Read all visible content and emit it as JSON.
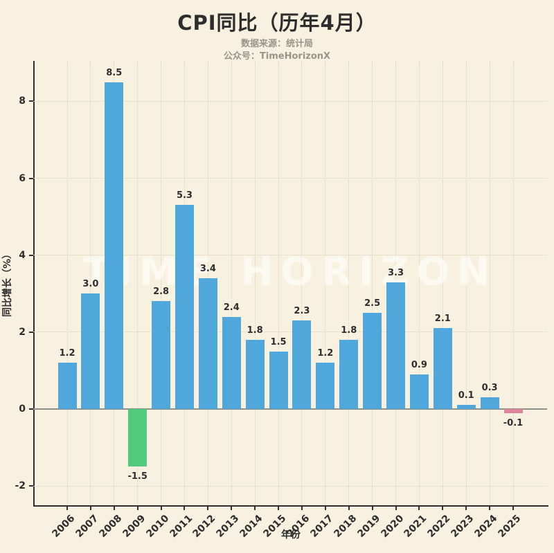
{
  "header": {
    "title": "CPI同比（历年4月）",
    "source_line": "数据来源：统计局",
    "account_line": "公众号：TimeHorizonX"
  },
  "chart_data": {
    "type": "bar",
    "title": "CPI同比（历年4月）",
    "categories": [
      "2006",
      "2007",
      "2008",
      "2009",
      "2010",
      "2011",
      "2012",
      "2013",
      "2014",
      "2015",
      "2016",
      "2017",
      "2018",
      "2019",
      "2020",
      "2021",
      "2022",
      "2023",
      "2024",
      "2025"
    ],
    "values": [
      1.2,
      3.0,
      8.5,
      -1.5,
      2.8,
      5.3,
      3.4,
      2.4,
      1.8,
      1.5,
      2.3,
      1.2,
      1.8,
      2.5,
      3.3,
      0.9,
      2.1,
      0.1,
      0.3,
      -0.1
    ],
    "value_labels": [
      "1.2",
      "3.0",
      "8.5",
      "-1.5",
      "2.8",
      "5.3",
      "3.4",
      "2.4",
      "1.8",
      "1.5",
      "2.3",
      "1.2",
      "1.8",
      "2.5",
      "3.3",
      "0.9",
      "2.1",
      "0.1",
      "0.3",
      "-0.1"
    ],
    "bar_colors": [
      "#4fa7db",
      "#4fa7db",
      "#4fa7db",
      "#52cb7e",
      "#4fa7db",
      "#4fa7db",
      "#4fa7db",
      "#4fa7db",
      "#4fa7db",
      "#4fa7db",
      "#4fa7db",
      "#4fa7db",
      "#4fa7db",
      "#4fa7db",
      "#4fa7db",
      "#4fa7db",
      "#4fa7db",
      "#4fa7db",
      "#4fa7db",
      "#e2849c"
    ],
    "xlabel": "年份",
    "ylabel": "同比增长（%）",
    "yticks": [
      -2,
      0,
      2,
      4,
      6,
      8
    ],
    "ylim": [
      -2.5,
      9.05
    ],
    "grid": true,
    "legend_position": "none",
    "watermark": "TIME HORIZON",
    "colors": {
      "background": "#f9f1df",
      "bar_default": "#4fa7db",
      "bar_negative_2009": "#52cb7e",
      "bar_negative_2025": "#e2849c",
      "zero_line": "#8f8f85",
      "axis": "#2f2f2f",
      "grid": "#ddd3b8",
      "subtitle_text": "#9b9488"
    }
  }
}
